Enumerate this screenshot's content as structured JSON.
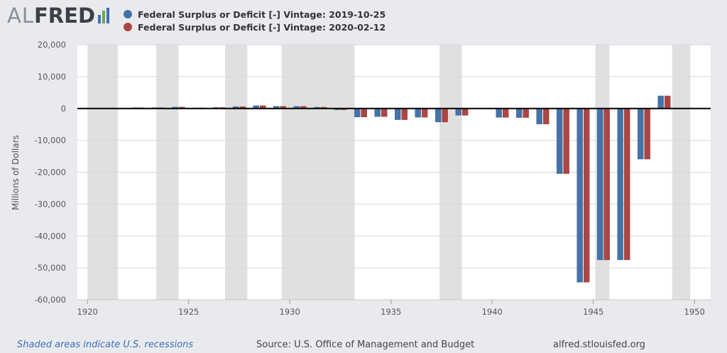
{
  "header": {
    "logo_al": "AL",
    "logo_fred": "FRED",
    "logo_icon": "fred-bars-icon"
  },
  "footer": {
    "recession_note": "Shaded areas indicate U.S. recessions",
    "source": "Source: U.S. Office of Management and Budget",
    "site": "alfred.stlouisfed.org"
  },
  "colors": {
    "series1": "#4572a7",
    "series2": "#aa4643",
    "recession": "#e0e0e0",
    "plot_bg": "#ffffff",
    "page_bg": "#e9eaee"
  },
  "chart_data": {
    "type": "bar",
    "title": "",
    "xlabel": "",
    "ylabel": "Millions of Dollars",
    "ylim": [
      -60000,
      20000
    ],
    "yticks": [
      20000,
      10000,
      0,
      -10000,
      -20000,
      -30000,
      -40000,
      -50000,
      -60000
    ],
    "ytick_labels": [
      "20,000",
      "10,000",
      "0",
      "-10,000",
      "-20,000",
      "-30,000",
      "-40,000",
      "-50,000",
      "-60,000"
    ],
    "xlim": [
      1919.5,
      1950.8
    ],
    "xticks": [
      "1920",
      "1925",
      "1930",
      "1935",
      "1940",
      "1945",
      "1950"
    ],
    "grid": "horizontal",
    "legend_position": "top-left",
    "recessions": [
      [
        1920.0,
        1921.5
      ],
      [
        1923.4,
        1924.5
      ],
      [
        1926.8,
        1927.9
      ],
      [
        1929.6,
        1933.2
      ],
      [
        1937.4,
        1938.5
      ],
      [
        1945.1,
        1945.8
      ],
      [
        1948.9,
        1949.8
      ]
    ],
    "x": [
      1922,
      1923,
      1924,
      1925,
      1926,
      1927,
      1928,
      1929,
      1930,
      1931,
      1932,
      1933,
      1934,
      1935,
      1936,
      1937,
      1938,
      1939,
      1940,
      1941,
      1942,
      1943,
      1944,
      1945,
      1946,
      1947,
      1948
    ],
    "series": [
      {
        "name": "Federal Surplus or Deficit [-] Vintage: 2019-10-25",
        "values": [
          313,
          309,
          505,
          250,
          377,
          635,
          939,
          734,
          738,
          462,
          -462,
          -2735,
          -2602,
          -3586,
          -2803,
          -4304,
          -2193,
          -89,
          -2846,
          -2920,
          -4941,
          -20503,
          -54554,
          -47557,
          -47553,
          -15936,
          4018
        ]
      },
      {
        "name": "Federal Surplus or Deficit [-] Vintage: 2020-02-12",
        "values": [
          313,
          309,
          505,
          250,
          377,
          635,
          939,
          734,
          738,
          462,
          -462,
          -2735,
          -2602,
          -3586,
          -2803,
          -4304,
          -2193,
          -89,
          -2846,
          -2920,
          -4941,
          -20503,
          -54554,
          -47557,
          -47553,
          -15936,
          4018
        ]
      }
    ]
  }
}
